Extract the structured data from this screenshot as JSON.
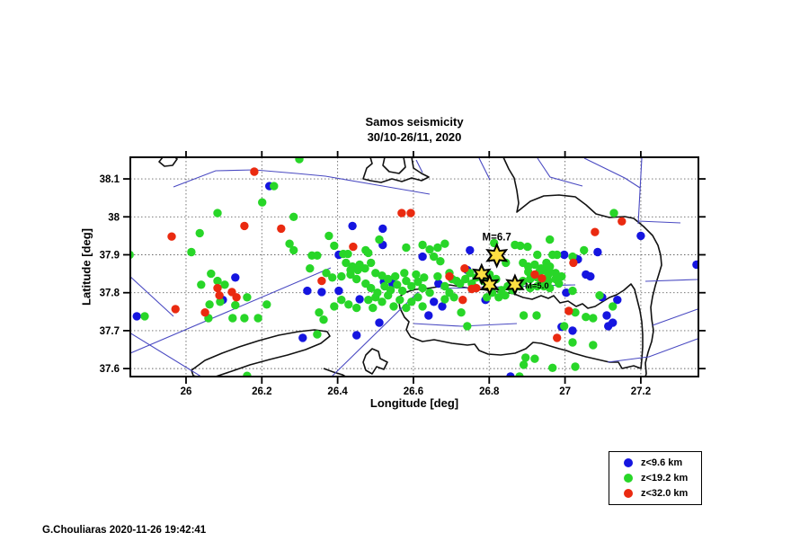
{
  "title": {
    "line1": "Samos seismicity",
    "line2": "30/10-26/11, 2020"
  },
  "footer": "G.Chouliaras 2020-11-26 19:42:41",
  "legend": {
    "items": [
      {
        "label": "z<9.6 km",
        "color": "#1515e0"
      },
      {
        "label": "z<19.2 km",
        "color": "#28d628"
      },
      {
        "label": "z<32.0 km",
        "color": "#ea2a10"
      }
    ]
  },
  "chart_data": {
    "type": "scatter",
    "title": "Samos seismicity 30/10-26/11, 2020",
    "xlabel": "Longitude [deg]",
    "ylabel": "Latitude [deg]",
    "xlim": [
      25.853,
      27.352
    ],
    "ylim": [
      37.579,
      38.157
    ],
    "grid": "dotted",
    "legend_position": "lower-right-outside",
    "xticks": {
      "values": [
        26,
        26.2,
        26.4,
        26.6,
        26.8,
        27,
        27.2
      ],
      "labels": [
        "26",
        "26.2",
        "26.4",
        "26.6",
        "26.8",
        "27",
        "27.2"
      ]
    },
    "yticks": {
      "values": [
        37.6,
        37.7,
        37.8,
        37.9,
        38,
        38.1
      ],
      "labels": [
        "37.6",
        "37.7",
        "37.8",
        "37.9",
        "38",
        "38.1"
      ]
    },
    "series": [
      {
        "name": "z<9.6 km",
        "color": "#1515e0",
        "marker": "circle",
        "points": [
          [
            26.22,
            38.081
          ],
          [
            26.439,
            37.976
          ],
          [
            26.519,
            37.969
          ],
          [
            26.519,
            37.926
          ],
          [
            26.624,
            37.895
          ],
          [
            26.749,
            37.912
          ],
          [
            26.998,
            37.9
          ],
          [
            27.034,
            37.888
          ],
          [
            27.086,
            37.907
          ],
          [
            27.2,
            37.95
          ],
          [
            27.347,
            37.874
          ],
          [
            25.87,
            37.738
          ],
          [
            26.13,
            37.84
          ],
          [
            26.097,
            37.781
          ],
          [
            26.32,
            37.805
          ],
          [
            26.358,
            37.802
          ],
          [
            26.308,
            37.681
          ],
          [
            26.403,
            37.805
          ],
          [
            26.522,
            37.829
          ],
          [
            26.545,
            37.824
          ],
          [
            26.458,
            37.783
          ],
          [
            26.666,
            37.824
          ],
          [
            26.654,
            37.776
          ],
          [
            26.64,
            37.74
          ],
          [
            26.676,
            37.764
          ],
          [
            26.51,
            37.721
          ],
          [
            26.45,
            37.688
          ],
          [
            26.856,
            37.579
          ],
          [
            26.79,
            37.781
          ],
          [
            26.742,
            37.86
          ],
          [
            27.055,
            37.848
          ],
          [
            27.067,
            37.843
          ],
          [
            27.003,
            37.8
          ],
          [
            27.098,
            37.788
          ],
          [
            27.138,
            37.781
          ],
          [
            27.11,
            37.74
          ],
          [
            27.114,
            37.712
          ],
          [
            27.126,
            37.721
          ],
          [
            26.991,
            37.71
          ],
          [
            27.02,
            37.7
          ],
          [
            26.403,
            37.9
          ]
        ]
      },
      {
        "name": "z<19.2 km",
        "color": "#28d628",
        "marker": "circle",
        "points": [
          [
            26.232,
            38.081
          ],
          [
            26.201,
            38.038
          ],
          [
            26.299,
            38.152
          ],
          [
            26.083,
            38.01
          ],
          [
            26.284,
            38.0
          ],
          [
            26.036,
            37.957
          ],
          [
            26.273,
            37.929
          ],
          [
            26.284,
            37.912
          ],
          [
            26.014,
            37.907
          ],
          [
            25.851,
            37.9
          ],
          [
            26.332,
            37.898
          ],
          [
            26.346,
            37.898
          ],
          [
            26.327,
            37.864
          ],
          [
            26.377,
            37.95
          ],
          [
            26.391,
            37.924
          ],
          [
            26.415,
            37.902
          ],
          [
            26.427,
            37.902
          ],
          [
            26.51,
            37.94
          ],
          [
            26.474,
            37.912
          ],
          [
            26.481,
            37.905
          ],
          [
            26.581,
            37.919
          ],
          [
            26.624,
            37.926
          ],
          [
            26.643,
            37.914
          ],
          [
            26.664,
            37.919
          ],
          [
            26.683,
            37.929
          ],
          [
            26.654,
            37.895
          ],
          [
            26.671,
            37.883
          ],
          [
            26.813,
            37.931
          ],
          [
            26.844,
            37.879
          ],
          [
            26.868,
            37.926
          ],
          [
            27.129,
            38.01
          ],
          [
            26.96,
            37.94
          ],
          [
            26.901,
            37.921
          ],
          [
            26.882,
            37.924
          ],
          [
            26.927,
            37.9
          ],
          [
            26.967,
            37.9
          ],
          [
            26.979,
            37.9
          ],
          [
            27.05,
            37.912
          ],
          [
            27.02,
            37.895
          ],
          [
            26.066,
            37.85
          ],
          [
            26.04,
            37.821
          ],
          [
            26.083,
            37.831
          ],
          [
            26.102,
            37.821
          ],
          [
            26.09,
            37.776
          ],
          [
            26.161,
            37.788
          ],
          [
            26.13,
            37.767
          ],
          [
            26.062,
            37.769
          ],
          [
            26.059,
            37.733
          ],
          [
            25.891,
            37.738
          ],
          [
            26.123,
            37.733
          ],
          [
            26.154,
            37.733
          ],
          [
            26.19,
            37.733
          ],
          [
            26.213,
            37.769
          ],
          [
            26.346,
            37.69
          ],
          [
            26.351,
            37.748
          ],
          [
            26.363,
            37.729
          ],
          [
            26.161,
            37.581
          ],
          [
            26.37,
            37.852
          ],
          [
            26.386,
            37.84
          ],
          [
            26.41,
            37.843
          ],
          [
            26.434,
            37.848
          ],
          [
            26.45,
            37.836
          ],
          [
            26.474,
            37.824
          ],
          [
            26.488,
            37.812
          ],
          [
            26.41,
            37.781
          ],
          [
            26.429,
            37.769
          ],
          [
            26.391,
            37.764
          ],
          [
            26.45,
            37.76
          ],
          [
            26.481,
            37.781
          ],
          [
            26.505,
            37.8
          ],
          [
            26.571,
            37.805
          ],
          [
            26.576,
            37.852
          ],
          [
            26.607,
            37.848
          ],
          [
            26.664,
            37.843
          ],
          [
            26.695,
            37.852
          ],
          [
            26.702,
            37.836
          ],
          [
            26.723,
            37.824
          ],
          [
            26.737,
            37.836
          ],
          [
            26.749,
            37.852
          ],
          [
            26.726,
            37.748
          ],
          [
            26.742,
            37.712
          ],
          [
            26.794,
            37.788
          ],
          [
            26.818,
            37.836
          ],
          [
            27.02,
            37.805
          ],
          [
            27.091,
            37.793
          ],
          [
            27.126,
            37.764
          ],
          [
            27.074,
            37.733
          ],
          [
            27.027,
            37.748
          ],
          [
            27.055,
            37.736
          ],
          [
            26.998,
            37.712
          ],
          [
            27.02,
            37.669
          ],
          [
            27.074,
            37.662
          ],
          [
            26.891,
            37.74
          ],
          [
            26.925,
            37.74
          ],
          [
            26.896,
            37.629
          ],
          [
            26.92,
            37.626
          ],
          [
            26.967,
            37.602
          ],
          [
            27.027,
            37.605
          ],
          [
            26.88,
            37.579
          ],
          [
            26.891,
            37.61
          ],
          [
            26.5,
            37.852
          ],
          [
            26.517,
            37.845
          ],
          [
            26.533,
            37.836
          ],
          [
            26.552,
            37.843
          ],
          [
            26.524,
            37.817
          ],
          [
            26.54,
            37.807
          ],
          [
            26.557,
            37.821
          ],
          [
            26.5,
            37.788
          ],
          [
            26.517,
            37.776
          ],
          [
            26.533,
            37.793
          ],
          [
            26.564,
            37.781
          ],
          [
            26.548,
            37.764
          ],
          [
            26.493,
            37.76
          ],
          [
            26.581,
            37.831
          ],
          [
            26.595,
            37.817
          ],
          [
            26.612,
            37.829
          ],
          [
            26.628,
            37.84
          ],
          [
            26.624,
            37.812
          ],
          [
            26.643,
            37.8
          ],
          [
            26.612,
            37.788
          ],
          [
            26.595,
            37.776
          ],
          [
            26.581,
            37.76
          ],
          [
            26.624,
            37.764
          ],
          [
            26.683,
            37.817
          ],
          [
            26.695,
            37.8
          ],
          [
            26.683,
            37.783
          ],
          [
            26.707,
            37.788
          ],
          [
            26.714,
            37.831
          ],
          [
            26.754,
            37.824
          ],
          [
            26.766,
            37.84
          ],
          [
            26.785,
            37.831
          ],
          [
            26.801,
            37.848
          ],
          [
            26.832,
            37.807
          ],
          [
            26.849,
            37.817
          ],
          [
            26.808,
            37.8
          ],
          [
            26.825,
            37.788
          ],
          [
            26.842,
            37.793
          ],
          [
            26.861,
            37.807
          ],
          [
            26.88,
            37.817
          ],
          [
            26.889,
            37.831
          ],
          [
            26.908,
            37.836
          ],
          [
            26.927,
            37.84
          ],
          [
            26.937,
            37.831
          ],
          [
            26.944,
            37.817
          ],
          [
            26.956,
            37.831
          ],
          [
            26.927,
            37.817
          ],
          [
            26.908,
            37.812
          ],
          [
            26.956,
            37.848
          ],
          [
            26.975,
            37.836
          ],
          [
            26.984,
            37.824
          ],
          [
            26.96,
            37.812
          ],
          [
            26.975,
            37.852
          ],
          [
            26.991,
            37.843
          ],
          [
            26.944,
            37.86
          ],
          [
            26.96,
            37.855
          ],
          [
            26.422,
            37.879
          ],
          [
            26.439,
            37.869
          ],
          [
            26.458,
            37.874
          ],
          [
            26.472,
            37.864
          ],
          [
            26.488,
            37.879
          ],
          [
            26.434,
            37.86
          ],
          [
            26.453,
            37.86
          ],
          [
            26.889,
            37.879
          ],
          [
            26.903,
            37.869
          ],
          [
            26.92,
            37.874
          ],
          [
            26.937,
            37.864
          ],
          [
            26.951,
            37.879
          ],
          [
            26.903,
            37.855
          ],
          [
            26.932,
            37.855
          ],
          [
            26.96,
            37.869
          ]
        ]
      },
      {
        "name": "z<32.0 km",
        "color": "#ea2a10",
        "marker": "circle",
        "points": [
          [
            26.18,
            38.119
          ],
          [
            26.154,
            37.976
          ],
          [
            26.251,
            37.969
          ],
          [
            25.962,
            37.948
          ],
          [
            26.569,
            38.01
          ],
          [
            26.593,
            38.01
          ],
          [
            26.441,
            37.921
          ],
          [
            27.15,
            37.988
          ],
          [
            27.079,
            37.96
          ],
          [
            27.022,
            37.879
          ],
          [
            26.083,
            37.812
          ],
          [
            26.121,
            37.802
          ],
          [
            26.088,
            37.793
          ],
          [
            26.133,
            37.788
          ],
          [
            26.05,
            37.748
          ],
          [
            25.972,
            37.757
          ],
          [
            26.358,
            37.831
          ],
          [
            26.766,
            37.812
          ],
          [
            26.73,
            37.781
          ],
          [
            26.92,
            37.848
          ],
          [
            27.01,
            37.752
          ],
          [
            26.979,
            37.681
          ],
          [
            26.754,
            37.81
          ],
          [
            26.695,
            37.843
          ],
          [
            26.735,
            37.864
          ],
          [
            26.939,
            37.838
          ]
        ]
      }
    ],
    "annotations": [
      {
        "label": "M=6.7",
        "lon": 26.82,
        "lat": 37.898,
        "marker": "star",
        "size": 12,
        "label_pos": "above"
      },
      {
        "label": "",
        "lon": 26.78,
        "lat": 37.849,
        "marker": "star",
        "size": 10,
        "label_pos": "none"
      },
      {
        "label": "",
        "lon": 26.801,
        "lat": 37.821,
        "marker": "star",
        "size": 10,
        "label_pos": "none"
      },
      {
        "label": "M=5.0",
        "lon": 26.868,
        "lat": 37.821,
        "marker": "star",
        "size": 10,
        "label_pos": "right"
      }
    ],
    "star_color": "#ffe042"
  }
}
